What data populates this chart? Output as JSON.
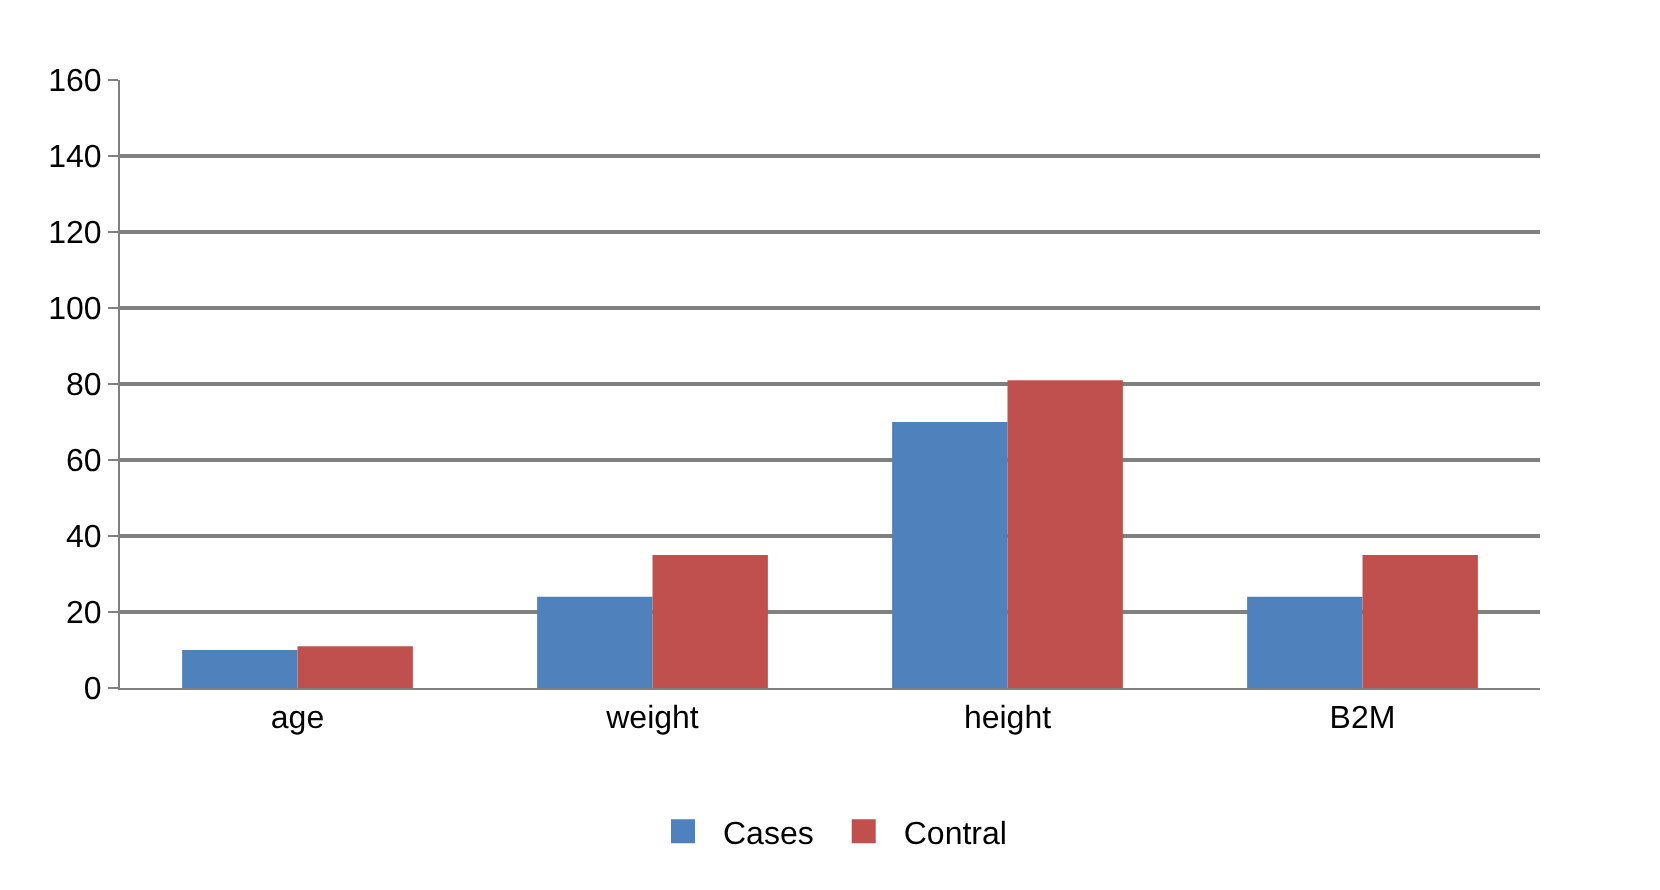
{
  "chart_data": {
    "type": "bar",
    "categories": [
      "age",
      "weight",
      "height",
      "B2M"
    ],
    "series": [
      {
        "name": "Cases",
        "color": "#4f81bd",
        "values": [
          10,
          24,
          70,
          24
        ]
      },
      {
        "name": "Contral",
        "color": "#c0504d",
        "values": [
          11,
          35,
          81,
          35
        ]
      }
    ],
    "ylim": [
      0,
      160
    ],
    "yticks": [
      0,
      20,
      40,
      60,
      80,
      100,
      120,
      140,
      160
    ],
    "grid": "y",
    "legend": "bottom"
  }
}
